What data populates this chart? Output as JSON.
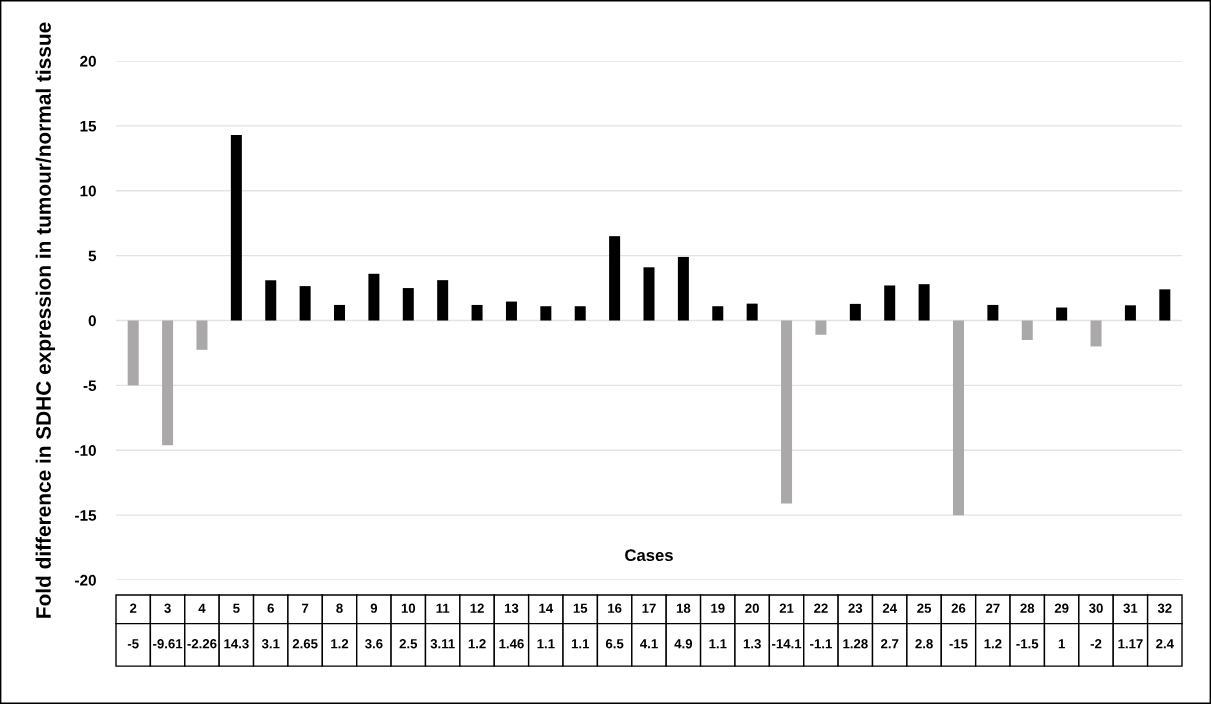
{
  "chart_data": {
    "type": "bar",
    "ylabel": "Fold difference in SDHC expression in tumour/normal tissue",
    "xlabel": "Cases",
    "categories": [
      "2",
      "3",
      "4",
      "5",
      "6",
      "7",
      "8",
      "9",
      "10",
      "11",
      "12",
      "13",
      "14",
      "15",
      "16",
      "17",
      "18",
      "19",
      "20",
      "21",
      "22",
      "23",
      "24",
      "25",
      "26",
      "27",
      "28",
      "29",
      "30",
      "31",
      "32"
    ],
    "values": [
      -5,
      -9.61,
      -2.26,
      14.3,
      3.1,
      2.65,
      1.2,
      3.6,
      2.5,
      3.11,
      1.2,
      1.46,
      1.1,
      1.1,
      6.5,
      4.1,
      4.9,
      1.1,
      1.3,
      -14.1,
      -1.1,
      1.28,
      2.7,
      2.8,
      -15,
      1.2,
      -1.5,
      1,
      -2,
      1.17,
      2.4
    ],
    "colors": [
      "#aaa8a9",
      "#aaa8a9",
      "#aaa8a9",
      "#000000",
      "#000000",
      "#000000",
      "#000000",
      "#000000",
      "#000000",
      "#000000",
      "#000000",
      "#000000",
      "#000000",
      "#000000",
      "#000000",
      "#000000",
      "#000000",
      "#000000",
      "#000000",
      "#aaa8a9",
      "#aaa8a9",
      "#000000",
      "#000000",
      "#000000",
      "#aaa8a9",
      "#000000",
      "#aaa8a9",
      "#000000",
      "#aaa8a9",
      "#000000",
      "#000000"
    ],
    "ylim": [
      -20,
      20
    ],
    "yticks": [
      -20,
      -15,
      -10,
      -5,
      0,
      5,
      10,
      15,
      20
    ],
    "grid": "y",
    "data_labels": true
  }
}
